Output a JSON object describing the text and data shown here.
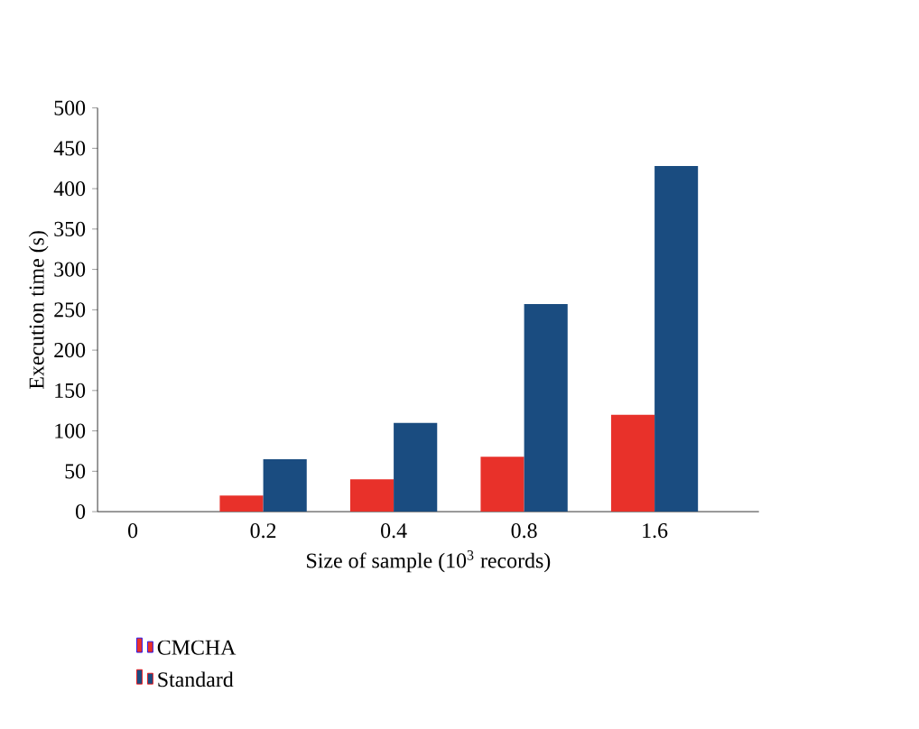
{
  "chart_data": {
    "type": "bar",
    "xlabel": "Size of sample (10$^{3}$ records)",
    "ylabel": "Execution time (s)",
    "categories": [
      "0",
      "0.2",
      "0.4",
      "0.8",
      "1.6"
    ],
    "series": [
      {
        "name": "CMCHA",
        "color": "#e8312a",
        "values": [
          null,
          20,
          40,
          68,
          120
        ]
      },
      {
        "name": "Standard",
        "color": "#1a4c80",
        "values": [
          null,
          65,
          110,
          257,
          428
        ]
      }
    ],
    "ylim": [
      0,
      500
    ],
    "yticks": [
      0,
      50,
      100,
      150,
      200,
      250,
      300,
      350,
      400,
      450,
      500
    ],
    "grid": false,
    "legend": "bottom"
  }
}
